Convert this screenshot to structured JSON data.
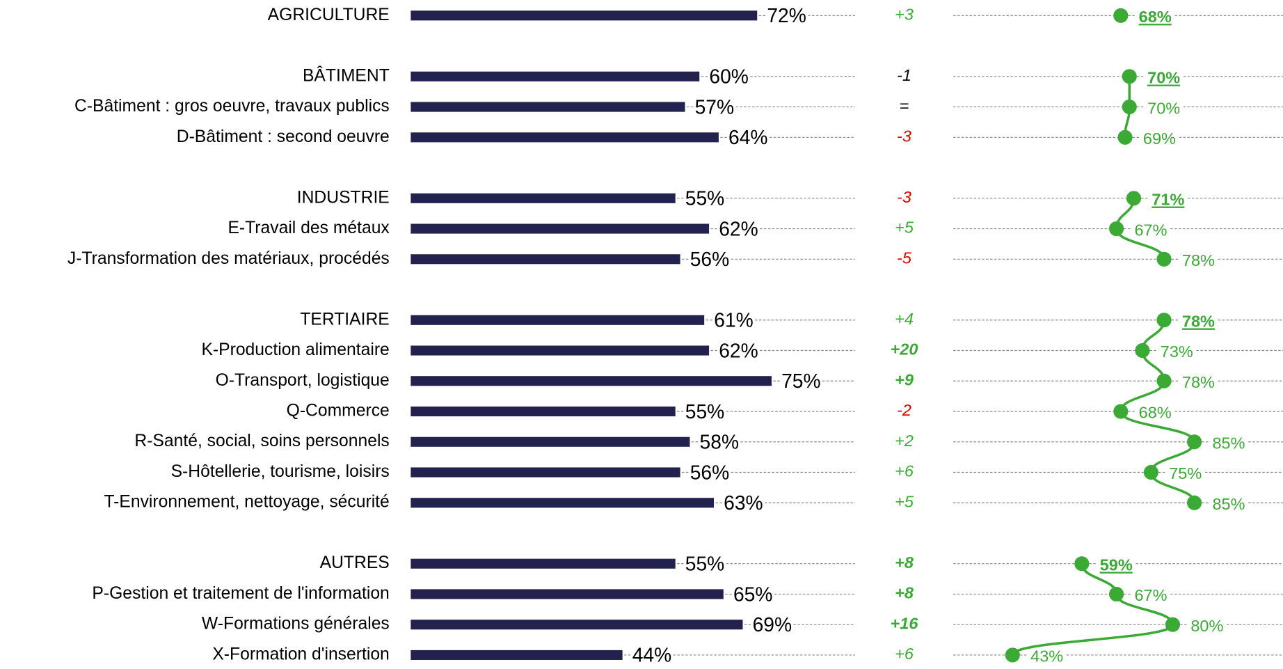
{
  "chart_data": {
    "type": "bar",
    "categories": [
      "AGRICULTURE",
      null,
      "BÂTIMENT",
      "C-Bâtiment : gros oeuvre, travaux publics",
      "D-Bâtiment : second oeuvre",
      null,
      "INDUSTRIE",
      "E-Travail des métaux",
      "J-Transformation des matériaux, procédés",
      null,
      "TERTIAIRE",
      "K-Production alimentaire",
      "O-Transport, logistique",
      "Q-Commerce",
      "R-Santé, social, soins personnels",
      "S-Hôtellerie, tourisme, loisirs",
      "T-Environnement, nettoyage, sécurité",
      null,
      "AUTRES",
      "P-Gestion et traitement de l'information",
      "W-Formations générales",
      "X-Formation d'insertion"
    ],
    "series": [
      {
        "color": "#23224f",
        "values": [
          72,
          null,
          60,
          57,
          64,
          null,
          55,
          62,
          56,
          null,
          61,
          62,
          75,
          55,
          58,
          56,
          63,
          null,
          55,
          65,
          69,
          44
        ],
        "value_labels": [
          "72%",
          null,
          "60%",
          "57%",
          "64%",
          null,
          "55%",
          "62%",
          "56%",
          null,
          "61%",
          "62%",
          "75%",
          "55%",
          "58%",
          "56%",
          "63%",
          null,
          "55%",
          "65%",
          "69%",
          "44%"
        ]
      },
      {
        "values": [
          3,
          null,
          -1,
          0,
          -3,
          null,
          -3,
          5,
          -5,
          null,
          4,
          20,
          9,
          -2,
          2,
          6,
          5,
          null,
          8,
          8,
          16,
          6
        ],
        "value_labels": [
          "+3",
          null,
          "-1",
          "=",
          "-3",
          null,
          "-3",
          "+5",
          "-5",
          null,
          "+4",
          "+20",
          "+9",
          "-2",
          "+2",
          "+6",
          "+5",
          null,
          "+8",
          "+8",
          "+16",
          "+6"
        ],
        "colors": [
          "#3aaa35",
          null,
          "#000000",
          "#000000",
          "#e00000",
          null,
          "#e00000",
          "#3aaa35",
          "#e00000",
          null,
          "#3aaa35",
          "#3aaa35",
          "#3aaa35",
          "#e00000",
          "#3aaa35",
          "#3aaa35",
          "#3aaa35",
          null,
          "#3aaa35",
          "#3aaa35",
          "#3aaa35",
          "#3aaa35"
        ],
        "bold": [
          false,
          null,
          false,
          false,
          false,
          null,
          false,
          false,
          false,
          null,
          false,
          true,
          true,
          false,
          false,
          false,
          false,
          null,
          true,
          true,
          true,
          false
        ]
      },
      {
        "color": "#3aaa35",
        "values": [
          68,
          null,
          70,
          70,
          69,
          null,
          71,
          67,
          78,
          null,
          78,
          73,
          78,
          68,
          85,
          75,
          85,
          null,
          59,
          67,
          80,
          43
        ],
        "value_labels": [
          "68%",
          null,
          "70%",
          "70%",
          "69%",
          null,
          "71%",
          "67%",
          "78%",
          null,
          "78%",
          "73%",
          "78%",
          "68%",
          "85%",
          "75%",
          "85%",
          null,
          "59%",
          "67%",
          "80%",
          "43%"
        ]
      }
    ]
  }
}
